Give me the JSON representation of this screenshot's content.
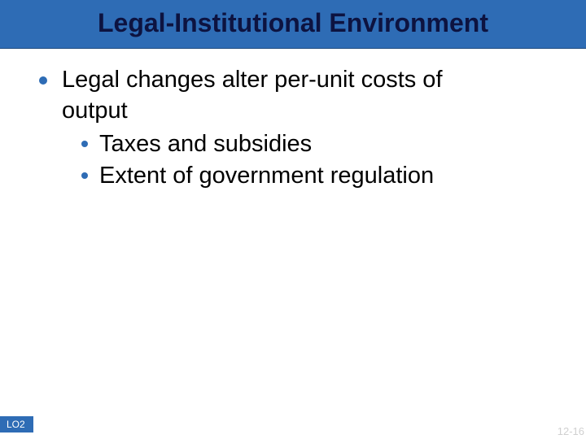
{
  "slide": {
    "title": "Legal-Institutional Environment",
    "bullets": {
      "l1_text": "Legal changes alter per-unit costs of",
      "l1_cont": "output",
      "l2a": "Taxes and subsidies",
      "l2b": "Extent of government regulation"
    },
    "footer_left": "LO2",
    "footer_right": "12-16"
  },
  "style": {
    "title_bg": "#2e6cb5",
    "title_color": "#0d1340",
    "bullet_color": "#2e6cb5",
    "body_text_color": "#000000",
    "footer_right_color": "#d0d0d0",
    "title_fontsize": 32,
    "body_fontsize": 29,
    "footer_fontsize": 12
  }
}
